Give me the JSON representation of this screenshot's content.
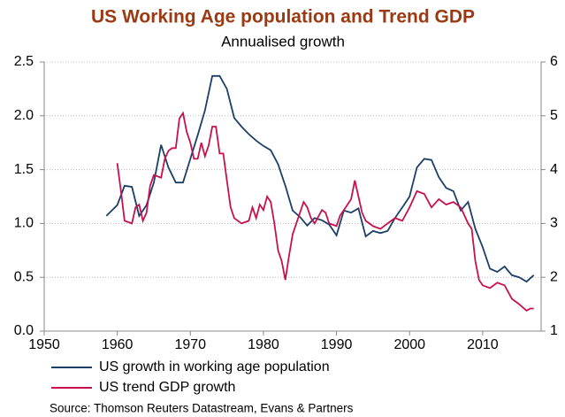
{
  "chart_data": {
    "type": "line",
    "title": "US Working Age population and Trend GDP",
    "subtitle": "Annualised growth",
    "source": "Source: Thomson Reuters Datastream, Evans & Partners",
    "xlim": [
      1950,
      2018
    ],
    "xticks": [
      1950,
      1960,
      1970,
      1980,
      1990,
      2000,
      2010
    ],
    "ylim": [
      0,
      2.5
    ],
    "yticks": [
      {
        "value": 0,
        "label": "0.0"
      },
      0.5,
      {
        "value": 1,
        "label": "1.0"
      },
      1.5,
      {
        "value": 2,
        "label": "2.0"
      },
      2.5
    ],
    "y2lim": [
      1,
      6
    ],
    "y2ticks": [
      1,
      2,
      3,
      4,
      5,
      6
    ],
    "grid": true,
    "legend": "bottom",
    "series": [
      {
        "name": "US growth in working age population",
        "color": "#1b3f66",
        "x": [
          1958.5,
          1960,
          1961,
          1962,
          1963,
          1964,
          1965,
          1966,
          1967,
          1968,
          1969,
          1970,
          1971,
          1972,
          1973,
          1974,
          1975,
          1976,
          1977,
          1978,
          1979,
          1980,
          1981,
          1982,
          1983,
          1984,
          1985,
          1986,
          1987,
          1988,
          1989,
          1990,
          1991,
          1992,
          1993,
          1994,
          1995,
          1996,
          1997,
          1998,
          1999,
          2000,
          2001,
          2002,
          2003,
          2004,
          2005,
          2006,
          2007,
          2008,
          2009,
          2010,
          2011,
          2012,
          2013,
          2014,
          2015,
          2016,
          2017
        ],
        "values": [
          1.07,
          1.17,
          1.35,
          1.34,
          1.07,
          1.17,
          1.38,
          1.73,
          1.52,
          1.38,
          1.38,
          1.6,
          1.82,
          2.05,
          2.37,
          2.37,
          2.25,
          1.98,
          1.9,
          1.83,
          1.77,
          1.72,
          1.68,
          1.55,
          1.35,
          1.12,
          1.06,
          0.98,
          1.05,
          1.03,
          0.99,
          0.89,
          1.12,
          1.1,
          1.14,
          0.88,
          0.93,
          0.91,
          0.93,
          1.05,
          1.15,
          1.25,
          1.52,
          1.6,
          1.59,
          1.43,
          1.33,
          1.3,
          1.12,
          1.2,
          0.95,
          0.78,
          0.58,
          0.55,
          0.6,
          0.52,
          0.5,
          0.46,
          0.52
        ]
      },
      {
        "name": "US trend GDP growth",
        "color": "#c8104f",
        "axis": "y2",
        "x": [
          1960,
          1960.5,
          1961,
          1962,
          1962.5,
          1963,
          1963.5,
          1964,
          1964.5,
          1965,
          1966,
          1966.5,
          1967,
          1967.5,
          1968,
          1968.5,
          1969,
          1969.5,
          1970,
          1970.5,
          1971,
          1971.5,
          1972,
          1972.5,
          1973,
          1973.5,
          1974,
          1974.5,
          1975,
          1975.5,
          1976,
          1977,
          1978,
          1978.5,
          1979,
          1979.5,
          1980,
          1980.5,
          1981,
          1981.5,
          1982,
          1982.5,
          1983,
          1983.5,
          1984,
          1985,
          1985.5,
          1986,
          1986.5,
          1987,
          1988,
          1988.5,
          1989,
          1990,
          1990.5,
          1991,
          1992,
          1992.5,
          1993,
          1993.5,
          1994,
          1995,
          1996,
          1997,
          1998,
          1999,
          2000,
          2001,
          2002,
          2003,
          2004,
          2005,
          2006,
          2007,
          2008,
          2008.5,
          2009,
          2009.5,
          2010,
          2011,
          2012,
          2013,
          2014,
          2015,
          2016,
          2016.5,
          2017
        ],
        "values": [
          4.12,
          3.6,
          3.05,
          3.0,
          3.3,
          3.35,
          3.05,
          3.2,
          3.7,
          3.9,
          3.85,
          4.2,
          4.35,
          4.4,
          4.4,
          4.95,
          5.05,
          4.7,
          4.5,
          4.2,
          4.2,
          4.5,
          4.25,
          4.45,
          4.8,
          4.8,
          4.3,
          4.3,
          3.8,
          3.3,
          3.1,
          3.0,
          3.05,
          3.3,
          3.1,
          3.35,
          3.25,
          3.5,
          3.4,
          3.0,
          2.5,
          2.3,
          1.95,
          2.4,
          2.8,
          3.2,
          3.4,
          3.3,
          3.1,
          3.0,
          3.25,
          3.2,
          3.0,
          2.95,
          3.15,
          3.25,
          3.45,
          3.8,
          3.5,
          3.2,
          3.05,
          2.95,
          2.9,
          3.0,
          3.1,
          3.05,
          3.3,
          3.6,
          3.55,
          3.3,
          3.45,
          3.35,
          3.4,
          3.3,
          3.0,
          2.9,
          2.3,
          1.95,
          1.85,
          1.8,
          1.9,
          1.85,
          1.6,
          1.5,
          1.38,
          1.42,
          1.42
        ]
      }
    ]
  }
}
